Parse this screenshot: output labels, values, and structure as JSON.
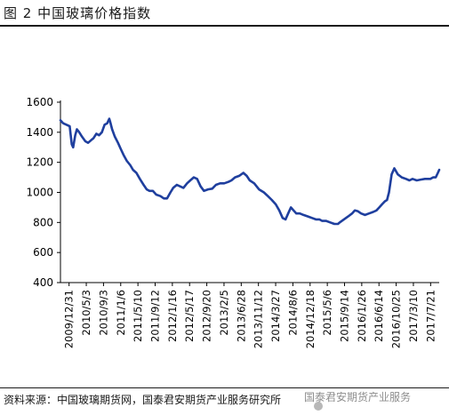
{
  "figure": {
    "title": "图 2 中国玻璃价格指数",
    "source": "资料来源：中国玻璃期货网，国泰君安期货产业服务研究所",
    "watermark": "国泰君安期货产业服务"
  },
  "chart_data": {
    "type": "line",
    "title": "",
    "xlabel": "",
    "ylabel": "",
    "ylim": [
      400,
      1600
    ],
    "yticks": [
      400,
      600,
      800,
      1000,
      1200,
      1400,
      1600
    ],
    "xlim": [
      "2009-12-31",
      "2017-09-25"
    ],
    "xticks": [
      "2009/12/31",
      "2010/5/3",
      "2010/9/3",
      "2011/1/6",
      "2011/5/10",
      "2011/9/12",
      "2012/1/16",
      "2012/5/17",
      "2012/9/20",
      "2013/2/5",
      "2013/6/28",
      "2013/11/12",
      "2014/3/27",
      "2014/8/6",
      "2014/12/18",
      "2015/5/6",
      "2015/9/14",
      "2016/1/26",
      "2016/6/14",
      "2016/10/25",
      "2017/3/10",
      "2017/7/21"
    ],
    "grid": false,
    "legend": "none",
    "series": [
      {
        "color": "#1f3f9e",
        "x": [
          "2009-12-31",
          "2010-01-20",
          "2010-02-15",
          "2010-03-10",
          "2010-03-25",
          "2010-04-05",
          "2010-04-20",
          "2010-05-03",
          "2010-05-20",
          "2010-06-10",
          "2010-07-05",
          "2010-07-25",
          "2010-08-20",
          "2010-09-03",
          "2010-09-25",
          "2010-10-15",
          "2010-11-05",
          "2010-11-25",
          "2010-12-15",
          "2010-12-30",
          "2011-01-06",
          "2011-01-20",
          "2011-02-10",
          "2011-03-05",
          "2011-03-25",
          "2011-04-15",
          "2011-05-10",
          "2011-06-05",
          "2011-06-25",
          "2011-07-20",
          "2011-08-15",
          "2011-09-12",
          "2011-10-05",
          "2011-10-25",
          "2011-11-20",
          "2011-12-15",
          "2012-01-16",
          "2012-02-10",
          "2012-03-05",
          "2012-03-30",
          "2012-04-20",
          "2012-05-17",
          "2012-06-10",
          "2012-07-05",
          "2012-08-01",
          "2012-08-25",
          "2012-09-20",
          "2012-10-15",
          "2012-11-10",
          "2012-12-05",
          "2013-01-05",
          "2013-02-05",
          "2013-03-05",
          "2013-04-05",
          "2013-05-05",
          "2013-06-05",
          "2013-06-28",
          "2013-07-25",
          "2013-08-25",
          "2013-09-25",
          "2013-10-20",
          "2013-11-12",
          "2013-12-15",
          "2014-01-20",
          "2014-02-25",
          "2014-03-27",
          "2014-04-25",
          "2014-05-25",
          "2014-06-20",
          "2014-07-15",
          "2014-08-06",
          "2014-08-25",
          "2014-09-15",
          "2014-10-05",
          "2014-10-25",
          "2014-11-20",
          "2014-12-18",
          "2015-01-20",
          "2015-02-20",
          "2015-03-20",
          "2015-04-15",
          "2015-05-06",
          "2015-06-05",
          "2015-07-05",
          "2015-08-05",
          "2015-09-01",
          "2015-09-14",
          "2015-10-15",
          "2015-11-15",
          "2015-12-15",
          "2016-01-05",
          "2016-01-26",
          "2016-02-20",
          "2016-03-20",
          "2016-04-20",
          "2016-05-20",
          "2016-06-14",
          "2016-07-05",
          "2016-07-25",
          "2016-08-15",
          "2016-09-01",
          "2016-09-15",
          "2016-10-05",
          "2016-10-25",
          "2016-11-20",
          "2016-12-20",
          "2017-01-20",
          "2017-02-15",
          "2017-03-10",
          "2017-04-10",
          "2017-05-10",
          "2017-06-10",
          "2017-07-05",
          "2017-07-21",
          "2017-08-10",
          "2017-08-30",
          "2017-09-15",
          "2017-09-25"
        ],
        "y": [
          1480,
          1460,
          1450,
          1440,
          1320,
          1300,
          1380,
          1420,
          1400,
          1370,
          1340,
          1330,
          1350,
          1360,
          1390,
          1380,
          1400,
          1450,
          1460,
          1490,
          1470,
          1420,
          1370,
          1330,
          1290,
          1250,
          1210,
          1180,
          1150,
          1130,
          1090,
          1050,
          1020,
          1010,
          1010,
          985,
          975,
          960,
          960,
          1000,
          1030,
          1050,
          1040,
          1030,
          1060,
          1080,
          1100,
          1090,
          1040,
          1010,
          1020,
          1025,
          1050,
          1060,
          1060,
          1070,
          1080,
          1100,
          1110,
          1130,
          1110,
          1080,
          1060,
          1020,
          1000,
          975,
          950,
          920,
          880,
          830,
          820,
          860,
          900,
          880,
          860,
          860,
          850,
          840,
          830,
          820,
          820,
          810,
          810,
          800,
          790,
          790,
          800,
          820,
          840,
          860,
          880,
          875,
          860,
          850,
          860,
          870,
          880,
          900,
          920,
          940,
          950,
          1000,
          1120,
          1160,
          1120,
          1100,
          1090,
          1080,
          1090,
          1080,
          1085,
          1090,
          1090,
          1090,
          1100,
          1100,
          1130,
          1150
        ]
      }
    ]
  }
}
